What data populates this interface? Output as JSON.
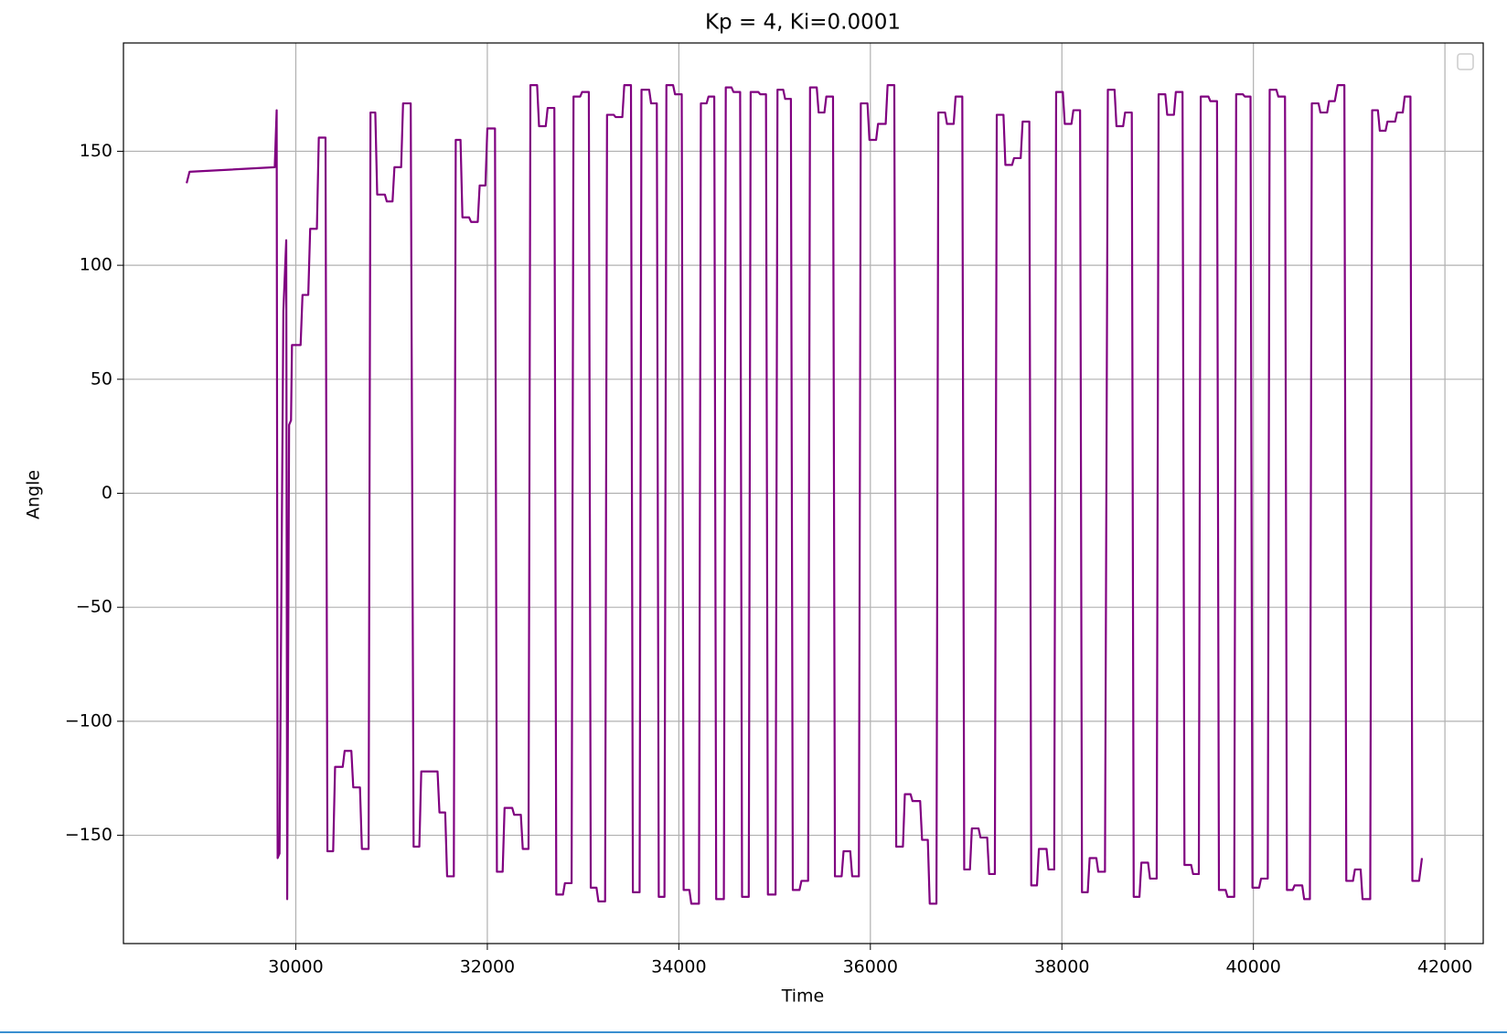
{
  "chart_data": {
    "type": "line",
    "title": "Kp = 4, Ki=0.0001",
    "xlabel": "Time",
    "ylabel": "Angle",
    "color": "#800080",
    "grid": true,
    "legend": "upper right",
    "xlim": [
      28200,
      42400
    ],
    "ylim": [
      -197.5,
      197.5
    ],
    "xticks": [
      30000,
      32000,
      34000,
      36000,
      38000,
      40000,
      42000
    ],
    "yticks": [
      {
        "value": -150,
        "label": "−150"
      },
      {
        "value": -100,
        "label": "−100"
      },
      {
        "value": -50,
        "label": "−50"
      },
      0,
      50,
      100,
      150
    ],
    "x": [
      28860,
      28890,
      29780,
      29800,
      29810,
      29830,
      29870,
      29900,
      29910,
      29930,
      29950,
      29960,
      30050,
      30070,
      30130,
      30150,
      30220,
      30240,
      30310,
      30330,
      30390,
      30410,
      30490,
      30510,
      30580,
      30600,
      30670,
      30690,
      30760,
      30780,
      30830,
      30850,
      30930,
      30950,
      31010,
      31030,
      31100,
      31120,
      31200,
      31230,
      31290,
      31310,
      31480,
      31500,
      31560,
      31580,
      31650,
      31670,
      31720,
      31740,
      31810,
      31830,
      31900,
      31920,
      31980,
      32000,
      32080,
      32100,
      32160,
      32180,
      32260,
      32280,
      32350,
      32370,
      32430,
      32450,
      32520,
      32540,
      32610,
      32630,
      32700,
      32720,
      32790,
      32810,
      32880,
      32900,
      32970,
      32990,
      33060,
      33080,
      33140,
      33160,
      33230,
      33250,
      33320,
      33340,
      33410,
      33430,
      33500,
      33520,
      33590,
      33610,
      33690,
      33710,
      33770,
      33790,
      33850,
      33870,
      33940,
      33960,
      34030,
      34050,
      34110,
      34130,
      34210,
      34230,
      34290,
      34310,
      34370,
      34390,
      34470,
      34490,
      34550,
      34570,
      34640,
      34660,
      34730,
      34750,
      34830,
      34850,
      34910,
      34930,
      35010,
      35030,
      35090,
      35110,
      35170,
      35190,
      35260,
      35280,
      35350,
      35370,
      35440,
      35460,
      35520,
      35540,
      35610,
      35630,
      35700,
      35720,
      35790,
      35810,
      35880,
      35900,
      35970,
      35990,
      36060,
      36080,
      36160,
      36180,
      36250,
      36270,
      36340,
      36360,
      36420,
      36440,
      36520,
      36540,
      36600,
      36620,
      36690,
      36710,
      36780,
      36800,
      36870,
      36890,
      36960,
      36980,
      37040,
      37060,
      37130,
      37150,
      37220,
      37240,
      37300,
      37320,
      37390,
      37410,
      37480,
      37500,
      37570,
      37590,
      37660,
      37680,
      37740,
      37760,
      37840,
      37860,
      37920,
      37940,
      38010,
      38030,
      38100,
      38120,
      38190,
      38210,
      38270,
      38290,
      38360,
      38380,
      38450,
      38480,
      38550,
      38570,
      38640,
      38660,
      38730,
      38750,
      38810,
      38830,
      38900,
      38920,
      38990,
      39010,
      39080,
      39100,
      39170,
      39190,
      39260,
      39280,
      39350,
      39370,
      39430,
      39450,
      39530,
      39550,
      39620,
      39640,
      39710,
      39730,
      39800,
      39820,
      39890,
      39910,
      39970,
      39990,
      40060,
      40080,
      40150,
      40170,
      40240,
      40260,
      40330,
      40350,
      40410,
      40430,
      40510,
      40530,
      40590,
      40610,
      40680,
      40700,
      40770,
      40790,
      40850,
      40880,
      40950,
      40970,
      41040,
      41060,
      41120,
      41140,
      41220,
      41240,
      41300,
      41320,
      41380,
      41400,
      41480,
      41500,
      41560,
      41580,
      41640,
      41660,
      41730,
      41760
    ],
    "values": [
      136,
      141,
      143,
      168,
      -160,
      -158,
      80,
      111,
      -178,
      30,
      32,
      65,
      65,
      87,
      87,
      116,
      116,
      156,
      156,
      -157,
      -157,
      -120,
      -120,
      -113,
      -113,
      -129,
      -129,
      -156,
      -156,
      167,
      167,
      131,
      131,
      128,
      128,
      143,
      143,
      171,
      171,
      -155,
      -155,
      -122,
      -122,
      -140,
      -140,
      -168,
      -168,
      155,
      155,
      121,
      121,
      119,
      119,
      135,
      135,
      160,
      160,
      -166,
      -166,
      -138,
      -138,
      -141,
      -141,
      -156,
      -156,
      179,
      179,
      161,
      161,
      169,
      169,
      -176,
      -176,
      -171,
      -171,
      174,
      174,
      176,
      176,
      -173,
      -173,
      -179,
      -179,
      166,
      166,
      165,
      165,
      179,
      179,
      -175,
      -175,
      177,
      177,
      171,
      171,
      -177,
      -177,
      179,
      179,
      175,
      175,
      -174,
      -174,
      -180,
      -180,
      171,
      171,
      174,
      174,
      -178,
      -178,
      178,
      178,
      176,
      176,
      -177,
      -177,
      176,
      176,
      175,
      175,
      -176,
      -176,
      177,
      177,
      173,
      173,
      -174,
      -174,
      -170,
      -170,
      178,
      178,
      167,
      167,
      174,
      174,
      -168,
      -168,
      -157,
      -157,
      -168,
      -168,
      171,
      171,
      155,
      155,
      162,
      162,
      179,
      179,
      -155,
      -155,
      -132,
      -132,
      -135,
      -135,
      -152,
      -152,
      -180,
      -180,
      167,
      167,
      162,
      162,
      174,
      174,
      -165,
      -165,
      -147,
      -147,
      -151,
      -151,
      -167,
      -167,
      166,
      166,
      144,
      144,
      147,
      147,
      163,
      163,
      -172,
      -172,
      -156,
      -156,
      -165,
      -165,
      176,
      176,
      162,
      162,
      168,
      168,
      -175,
      -175,
      -160,
      -160,
      -166,
      -166,
      177,
      177,
      161,
      161,
      167,
      167,
      -177,
      -177,
      -162,
      -162,
      -169,
      -169,
      175,
      175,
      166,
      166,
      176,
      176,
      -163,
      -163,
      -167,
      -167,
      174,
      174,
      172,
      172,
      -174,
      -174,
      -177,
      -177,
      175,
      175,
      174,
      174,
      -173,
      -173,
      -169,
      -169,
      177,
      177,
      174,
      174,
      -174,
      -174,
      -172,
      -172,
      -178,
      -178,
      171,
      171,
      167,
      167,
      172,
      172,
      179,
      179,
      -170,
      -170,
      -165,
      -165,
      -178,
      -178,
      168,
      168,
      159,
      159,
      163,
      163,
      167,
      167,
      174,
      174,
      -170,
      -170,
      -160
    ]
  }
}
